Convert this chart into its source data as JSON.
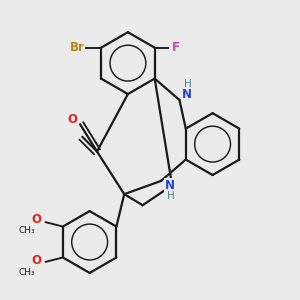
{
  "background_color": "#ebebeb",
  "bond_color": "#1a1a1a",
  "bond_width": 1.6,
  "atom_labels": {
    "Br": {
      "color": "#b8860b",
      "fontsize": 8.5
    },
    "F": {
      "color": "#cc44aa",
      "fontsize": 8.5
    },
    "O": {
      "color": "#dd2222",
      "fontsize": 8.5
    },
    "N": {
      "color": "#2244cc",
      "fontsize": 8.5
    },
    "H": {
      "color": "#448888",
      "fontsize": 7.5
    }
  },
  "xlim": [
    -1.6,
    2.0
  ],
  "ylim": [
    -1.8,
    2.2
  ],
  "figsize": [
    3.0,
    3.0
  ],
  "dpi": 100
}
